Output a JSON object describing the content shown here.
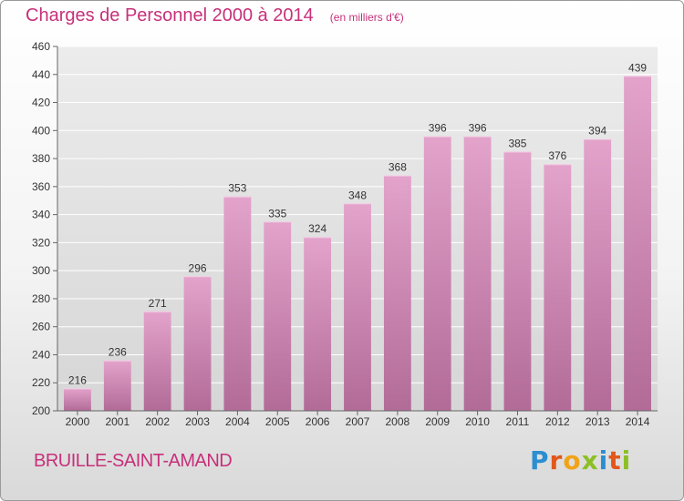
{
  "header": {
    "title": "Charges de Personnel 2000 à 2014",
    "subtitle": "(en milliers d'€)"
  },
  "footer": {
    "commune": "BRUILLE-SAINT-AMAND",
    "logo_text": "Proxiti",
    "logo_colors": [
      "#2b8ed1",
      "#e2571b",
      "#f0a317",
      "#8cbf26",
      "#2b8ed1",
      "#e2571b",
      "#8cbf26"
    ]
  },
  "colors": {
    "accent": "#c7307a",
    "bar_top": "#e3a3cb",
    "bar_bottom": "#b26b97"
  },
  "chart_data": {
    "type": "bar",
    "categories": [
      "2000",
      "2001",
      "2002",
      "2003",
      "2004",
      "2005",
      "2006",
      "2007",
      "2008",
      "2009",
      "2010",
      "2011",
      "2012",
      "2013",
      "2014"
    ],
    "values": [
      216,
      236,
      271,
      296,
      353,
      335,
      324,
      348,
      368,
      396,
      396,
      385,
      376,
      394,
      439
    ],
    "title": "Charges de Personnel 2000 à 2014",
    "subtitle": "(en milliers d'€)",
    "ylim": [
      200,
      460
    ],
    "yticks": [
      200,
      220,
      240,
      260,
      280,
      300,
      320,
      340,
      360,
      380,
      400,
      420,
      440,
      460
    ],
    "grid": true,
    "data_labels": true
  }
}
